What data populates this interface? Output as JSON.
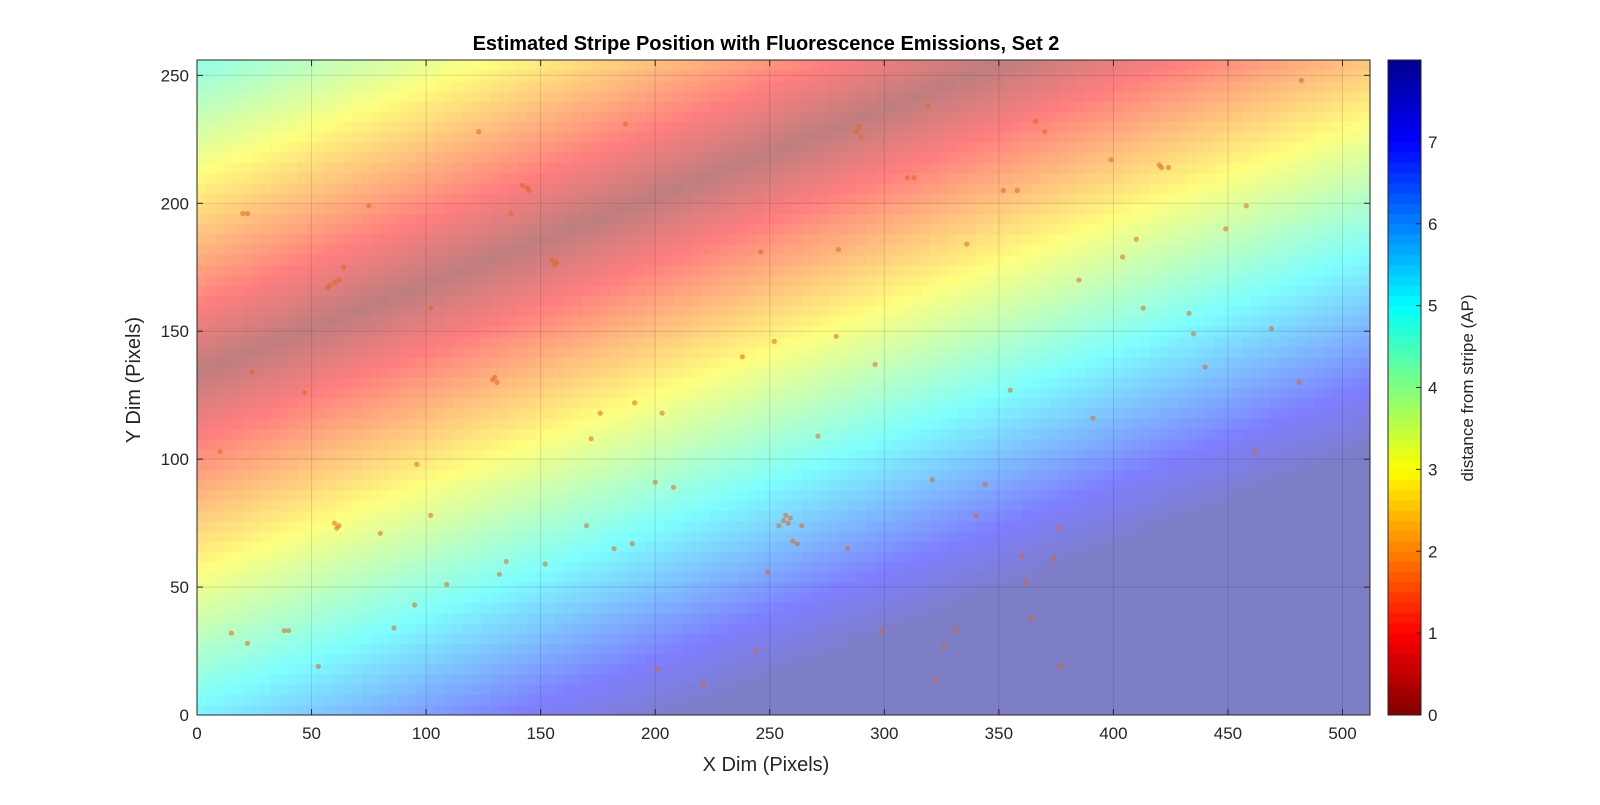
{
  "chart_data": {
    "type": "heatmap",
    "title": "Estimated Stripe Position with Fluorescence Emissions, Set 2",
    "xlabel": "X Dim (Pixels)",
    "ylabel": "Y Dim (Pixels)",
    "xlim": [
      0,
      512
    ],
    "ylim": [
      0,
      256
    ],
    "xticks": [
      0,
      50,
      100,
      150,
      200,
      250,
      300,
      350,
      400,
      450,
      500
    ],
    "yticks": [
      0,
      50,
      100,
      150,
      200,
      250
    ],
    "grid": true,
    "colorbar": {
      "label": "distance from stripe (AP)",
      "range": [
        0,
        8
      ],
      "ticks": [
        0,
        1,
        2,
        3,
        4,
        5,
        6,
        7
      ],
      "colormap": "jet-reversed",
      "placement": "right"
    },
    "stripe": {
      "description_free_params": true,
      "center_line": [
        [
          0,
          134
        ],
        [
          512,
          310
        ]
      ],
      "distance_per_pixel": 0.0387
    },
    "emissions": [
      [
        15,
        32
      ],
      [
        22,
        28
      ],
      [
        38,
        33
      ],
      [
        40,
        33
      ],
      [
        53,
        19
      ],
      [
        10,
        103
      ],
      [
        20,
        196
      ],
      [
        22,
        196
      ],
      [
        57,
        167
      ],
      [
        58,
        168
      ],
      [
        60,
        169
      ],
      [
        62,
        170
      ],
      [
        64,
        175
      ],
      [
        60,
        75
      ],
      [
        61,
        73
      ],
      [
        62,
        74
      ],
      [
        24,
        134
      ],
      [
        47,
        126
      ],
      [
        75,
        199
      ],
      [
        80,
        71
      ],
      [
        86,
        34
      ],
      [
        95,
        43
      ],
      [
        96,
        98
      ],
      [
        102,
        78
      ],
      [
        102,
        159
      ],
      [
        109,
        51
      ],
      [
        123,
        228
      ],
      [
        129,
        131
      ],
      [
        130,
        132
      ],
      [
        131,
        130
      ],
      [
        132,
        55
      ],
      [
        135,
        60
      ],
      [
        137,
        196
      ],
      [
        142,
        207
      ],
      [
        144,
        206
      ],
      [
        145,
        205
      ],
      [
        152,
        59
      ],
      [
        155,
        178
      ],
      [
        156,
        176
      ],
      [
        157,
        177
      ],
      [
        170,
        74
      ],
      [
        172,
        108
      ],
      [
        176,
        118
      ],
      [
        182,
        65
      ],
      [
        187,
        231
      ],
      [
        190,
        67
      ],
      [
        191,
        122
      ],
      [
        200,
        91
      ],
      [
        201,
        18
      ],
      [
        203,
        118
      ],
      [
        208,
        89
      ],
      [
        221,
        12
      ],
      [
        238,
        140
      ],
      [
        244,
        25
      ],
      [
        246,
        181
      ],
      [
        249,
        56
      ],
      [
        252,
        146
      ],
      [
        254,
        74
      ],
      [
        256,
        76
      ],
      [
        257,
        78
      ],
      [
        258,
        75
      ],
      [
        259,
        77
      ],
      [
        260,
        68
      ],
      [
        262,
        67
      ],
      [
        264,
        74
      ],
      [
        271,
        109
      ],
      [
        279,
        148
      ],
      [
        280,
        182
      ],
      [
        284,
        65
      ],
      [
        288,
        228
      ],
      [
        289,
        230
      ],
      [
        290,
        226
      ],
      [
        296,
        137
      ],
      [
        299,
        33
      ],
      [
        310,
        210
      ],
      [
        313,
        210
      ],
      [
        319,
        238
      ],
      [
        321,
        92
      ],
      [
        322,
        14
      ],
      [
        326,
        27
      ],
      [
        331,
        33
      ],
      [
        336,
        184
      ],
      [
        340,
        78
      ],
      [
        344,
        90
      ],
      [
        352,
        205
      ],
      [
        355,
        127
      ],
      [
        358,
        205
      ],
      [
        360,
        62
      ],
      [
        362,
        52
      ],
      [
        364,
        38
      ],
      [
        366,
        232
      ],
      [
        370,
        228
      ],
      [
        374,
        61
      ],
      [
        376,
        73
      ],
      [
        377,
        19
      ],
      [
        385,
        170
      ],
      [
        391,
        116
      ],
      [
        399,
        217
      ],
      [
        404,
        179
      ],
      [
        410,
        186
      ],
      [
        413,
        159
      ],
      [
        420,
        215
      ],
      [
        421,
        214
      ],
      [
        424,
        214
      ],
      [
        433,
        157
      ],
      [
        435,
        149
      ],
      [
        440,
        136
      ],
      [
        449,
        190
      ],
      [
        458,
        199
      ],
      [
        462,
        103
      ],
      [
        469,
        151
      ],
      [
        481,
        130
      ],
      [
        482,
        248
      ]
    ]
  }
}
